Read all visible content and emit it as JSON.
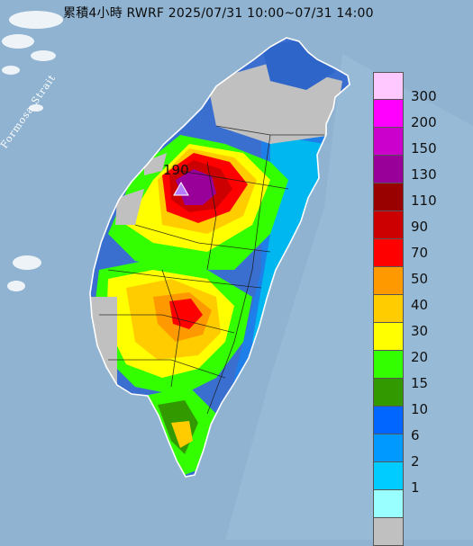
{
  "title": "累積4小時 RWRF 2025/07/31 10:00~07/31 14:00",
  "strait_label": "Formosa Strait",
  "peak_value": "190",
  "legend": {
    "labels": [
      "300",
      "200",
      "150",
      "130",
      "110",
      "90",
      "70",
      "50",
      "40",
      "30",
      "20",
      "15",
      "10",
      "6",
      "2",
      "1"
    ],
    "colors": [
      "#ffc8ff",
      "#ff00ff",
      "#cc00cc",
      "#990099",
      "#990000",
      "#cc0000",
      "#ff0000",
      "#ff9900",
      "#ffcc00",
      "#ffff00",
      "#33ff00",
      "#339900",
      "#0066ff",
      "#0099ff",
      "#00ccff",
      "#99ffff",
      "#c0c0c0"
    ]
  },
  "colors": {
    "sea": "#8fb3d1",
    "land_base": "#3a6fd0",
    "no_rain": "#c0c0c0",
    "peak_marker": "#b57cff"
  }
}
